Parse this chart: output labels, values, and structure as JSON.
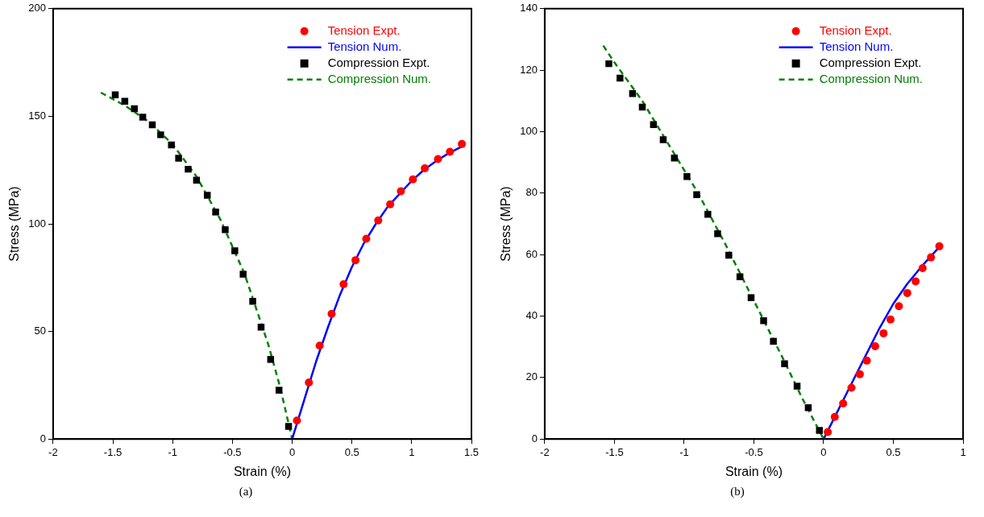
{
  "chart_data": [
    {
      "type": "scatter",
      "xlabel": "Strain (%)",
      "ylabel": "Stress (MPa)",
      "xlim": [
        -2,
        1.5
      ],
      "xticks": [
        -2,
        -1.5,
        -1,
        -0.5,
        0,
        0.5,
        1,
        1.5
      ],
      "ylim": [
        0,
        200
      ],
      "yticks": [
        0,
        50,
        100,
        150,
        200
      ],
      "grid": false,
      "legend": "top right",
      "annotations": [
        "(a)"
      ],
      "series": [
        {
          "name": "Tension Expt.",
          "type": "scatter",
          "marker": "circle",
          "color": "#ff0000",
          "x": [
            0.04,
            0.14,
            0.23,
            0.33,
            0.43,
            0.53,
            0.62,
            0.72,
            0.82,
            0.91,
            1.01,
            1.11,
            1.22,
            1.32,
            1.42
          ],
          "values": [
            8.6,
            26.3,
            43.4,
            58.2,
            71.9,
            83.1,
            93.1,
            101.6,
            109.1,
            115.2,
            120.7,
            125.8,
            130.1,
            133.5,
            137.1
          ]
        },
        {
          "name": "Tension Num.",
          "type": "line",
          "marker": "none",
          "line_style": "solid",
          "color": "#0000ff",
          "x": [
            0,
            0.1,
            0.2,
            0.3,
            0.4,
            0.5,
            0.6,
            0.7,
            0.8,
            0.9,
            1.0,
            1.1,
            1.2,
            1.3,
            1.42
          ],
          "values": [
            0,
            18,
            36,
            52,
            67,
            80,
            91,
            100,
            108,
            114,
            120,
            125,
            129,
            132.5,
            136
          ]
        },
        {
          "name": "Compression Expt.",
          "type": "scatter",
          "marker": "square",
          "color": "#000000",
          "x": [
            -1.48,
            -1.4,
            -1.32,
            -1.25,
            -1.17,
            -1.1,
            -1.01,
            -0.95,
            -0.87,
            -0.8,
            -0.71,
            -0.64,
            -0.56,
            -0.48,
            -0.41,
            -0.33,
            -0.26,
            -0.18,
            -0.11,
            -0.03
          ],
          "values": [
            160,
            157,
            153.5,
            149.6,
            146,
            141.4,
            136.7,
            130.5,
            125.4,
            120.3,
            113.3,
            105.5,
            97.3,
            87.5,
            76.6,
            64,
            52,
            37,
            22.7,
            5.9
          ]
        },
        {
          "name": "Compression Num.",
          "type": "line",
          "marker": "none",
          "line_style": "dashed",
          "color": "#008000",
          "x": [
            -1.6,
            -1.4,
            -1.2,
            -1.0,
            -0.8,
            -0.6,
            -0.4,
            -0.2,
            -0.1,
            0
          ],
          "values": [
            161,
            155,
            147.5,
            137,
            122,
            102,
            77,
            44,
            24,
            0
          ]
        }
      ]
    },
    {
      "type": "scatter",
      "xlabel": "Strain (%)",
      "ylabel": "Stress (MPa)",
      "xlim": [
        -2,
        1
      ],
      "xticks": [
        -2,
        -1.5,
        -1,
        -0.5,
        0,
        0.5,
        1
      ],
      "ylim": [
        0,
        140
      ],
      "yticks": [
        0,
        20,
        40,
        60,
        80,
        100,
        120,
        140
      ],
      "grid": false,
      "legend": "top right",
      "annotations": [
        "(b)"
      ],
      "series": [
        {
          "name": "Tension Expt.",
          "type": "scatter",
          "marker": "circle",
          "color": "#ff0000",
          "x": [
            0.03,
            0.08,
            0.14,
            0.2,
            0.26,
            0.31,
            0.37,
            0.43,
            0.48,
            0.54,
            0.6,
            0.66,
            0.71,
            0.77,
            0.83
          ],
          "values": [
            2.3,
            7.2,
            11.6,
            16.7,
            21.1,
            25.5,
            30.2,
            34.4,
            38.9,
            43.2,
            47.5,
            51.3,
            55.6,
            59.1,
            62.7
          ]
        },
        {
          "name": "Tension Num.",
          "type": "line",
          "marker": "none",
          "line_style": "solid",
          "color": "#0000ff",
          "x": [
            0,
            0.1,
            0.2,
            0.3,
            0.4,
            0.5,
            0.6,
            0.7,
            0.82
          ],
          "values": [
            0,
            9,
            18,
            27,
            36,
            44,
            50.5,
            56,
            62
          ]
        },
        {
          "name": "Compression Expt.",
          "type": "scatter",
          "marker": "square",
          "color": "#000000",
          "x": [
            -1.54,
            -1.46,
            -1.37,
            -1.3,
            -1.22,
            -1.15,
            -1.07,
            -0.98,
            -0.91,
            -0.83,
            -0.76,
            -0.68,
            -0.6,
            -0.52,
            -0.43,
            -0.36,
            -0.28,
            -0.19,
            -0.11,
            -0.03
          ],
          "values": [
            122.1,
            117.4,
            112.4,
            108.0,
            102.3,
            97.4,
            91.4,
            85.4,
            79.5,
            73.1,
            66.8,
            59.8,
            52.8,
            46.0,
            38.5,
            31.8,
            24.5,
            17.2,
            10.2,
            2.8
          ]
        },
        {
          "name": "Compression Num.",
          "type": "line",
          "marker": "none",
          "line_style": "dashed",
          "color": "#008000",
          "x": [
            -1.58,
            -1.5,
            -1.3,
            -1.1,
            -0.9,
            -0.7,
            -0.5,
            -0.3,
            -0.15,
            0
          ],
          "values": [
            128,
            122.5,
            110,
            95,
            80,
            63,
            45,
            27,
            13,
            0
          ]
        }
      ]
    }
  ]
}
